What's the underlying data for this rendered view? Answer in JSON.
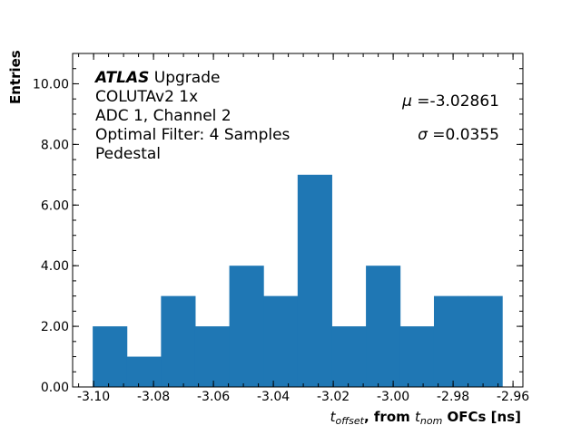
{
  "chart_data": {
    "type": "bar",
    "subtype": "histogram",
    "bin_edges": [
      -3.1003,
      -3.0889,
      -3.0775,
      -3.0661,
      -3.0547,
      -3.0433,
      -3.0319,
      -3.0205,
      -3.0091,
      -2.9977,
      -2.9864,
      -2.975,
      -2.9636
    ],
    "values": [
      2,
      1,
      3,
      2,
      4,
      3,
      7,
      2,
      4,
      2,
      3,
      3
    ],
    "color": "#1f77b4",
    "xlabel": {
      "var": "t",
      "var_sub": "offset",
      "mid": ", from ",
      "var2": "t",
      "var2_sub": "nom",
      "tail": " OFCs [ns]"
    },
    "ylabel": "Entries",
    "xlim": [
      -3.107,
      -2.9567
    ],
    "ylim": [
      0,
      11
    ],
    "xticks": [
      "-3.10",
      "-3.08",
      "-3.06",
      "-3.04",
      "-3.02",
      "-3.00",
      "-2.98",
      "-2.96"
    ],
    "xtick_values": [
      -3.1,
      -3.08,
      -3.06,
      -3.04,
      -3.02,
      -3.0,
      -2.98,
      -2.96
    ],
    "yticks": [
      "0.00",
      "2.00",
      "4.00",
      "6.00",
      "8.00",
      "10.00"
    ],
    "ytick_values": [
      0,
      2,
      4,
      6,
      8,
      10
    ],
    "grid": false,
    "annotations": {
      "atlas": "ATLAS",
      "upgrade": " Upgrade",
      "lines": [
        "COLUTAv2 1x",
        "ADC 1, Channel 2",
        "Optimal Filter: 4 Samples",
        "Pedestal"
      ],
      "mu_symbol": "μ",
      "mu_value": " =-3.02861",
      "sigma_symbol": "σ",
      "sigma_value": " =0.0355"
    }
  }
}
